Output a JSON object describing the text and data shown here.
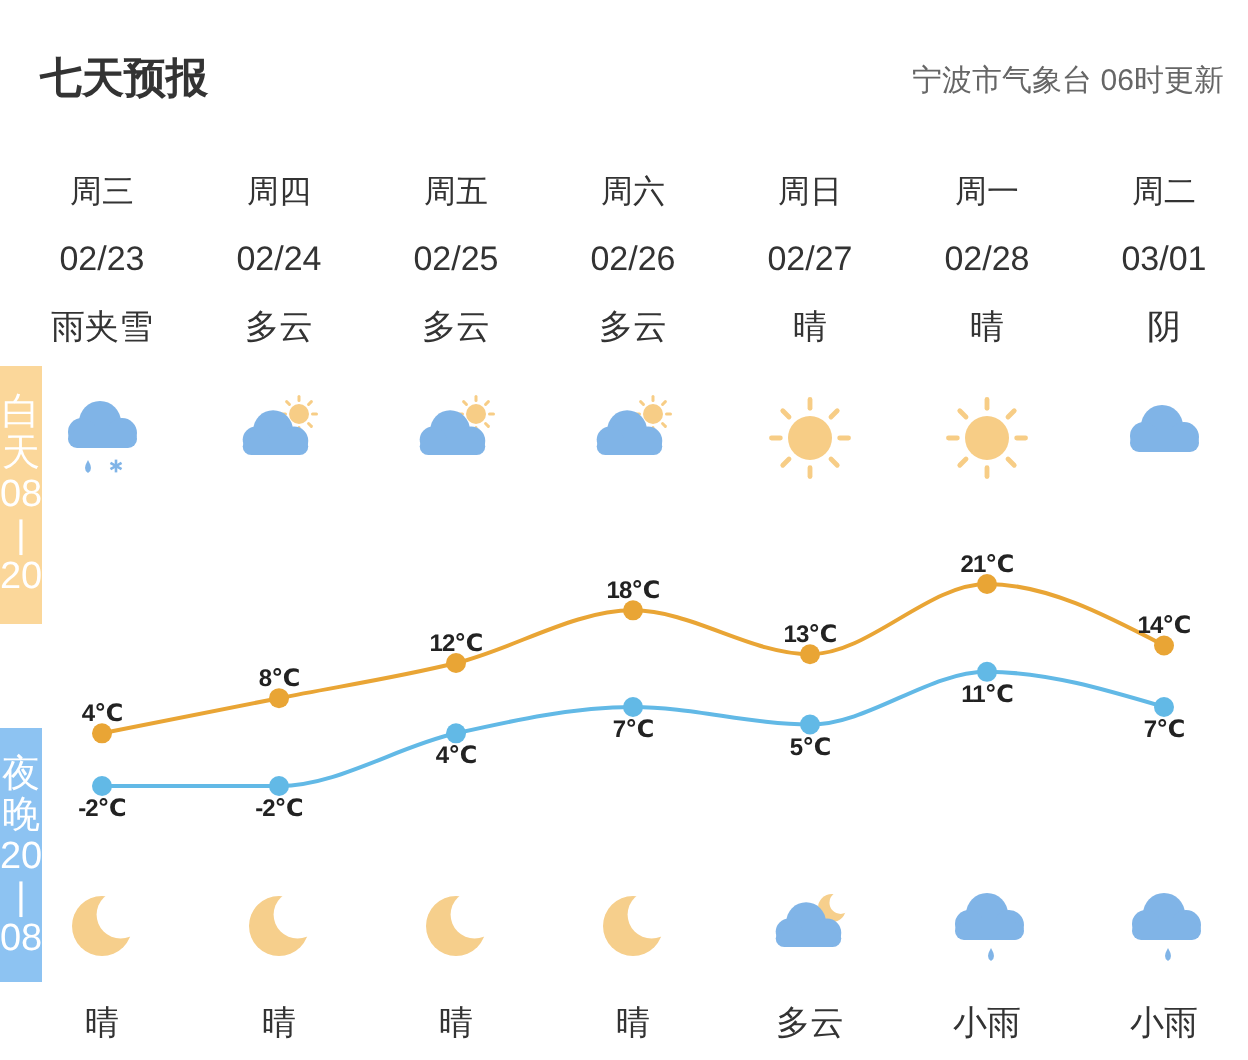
{
  "chart_data": {
    "type": "line",
    "title": "七天预报",
    "subtitle": "宁波市气象台 06时更新",
    "categories": [
      "02/23",
      "02/24",
      "02/25",
      "02/26",
      "02/27",
      "02/28",
      "03/01"
    ],
    "series": [
      {
        "color": "#e9a535",
        "values": [
          4,
          8,
          12,
          18,
          13,
          21,
          14
        ],
        "value_labels": [
          "4℃",
          "8℃",
          "12℃",
          "18℃",
          "13℃",
          "21℃",
          "14℃"
        ]
      },
      {
        "color": "#62b9e6",
        "values": [
          -2,
          -2,
          4,
          7,
          5,
          11,
          7
        ],
        "value_labels": [
          "-2℃",
          "-2℃",
          "4℃",
          "7℃",
          "5℃",
          "11℃",
          "7℃"
        ]
      }
    ],
    "marker": "circle",
    "line_style": "solid",
    "annotations": [
      "周三",
      "周四",
      "周五",
      "周六",
      "周日",
      "周一",
      "周二",
      "雨夹雪",
      "多云",
      "多云",
      "多云",
      "晴",
      "晴",
      "阴",
      "晴",
      "晴",
      "晴",
      "晴",
      "多云",
      "小雨",
      "小雨",
      "白天08|20",
      "夜晚20|08"
    ]
  }
}
